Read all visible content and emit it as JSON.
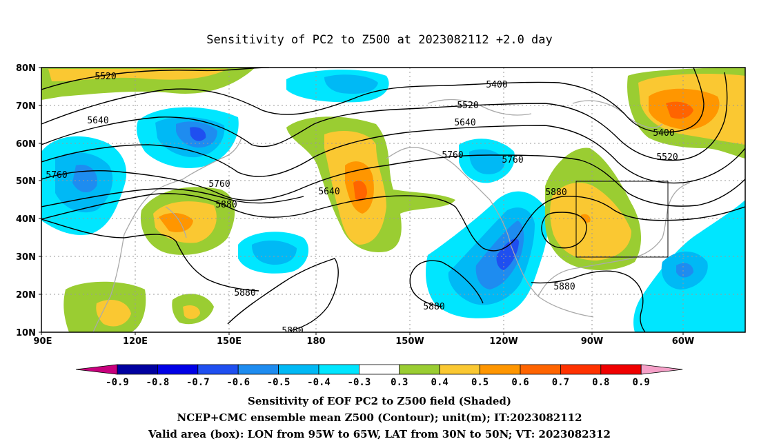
{
  "title": "Sensitivity of PC2 to Z500 at 2023082112 +2.0 day",
  "axes": {
    "lat_labels": [
      "80N",
      "70N",
      "60N",
      "50N",
      "40N",
      "30N",
      "20N",
      "10N"
    ],
    "lon_labels": [
      "90E",
      "120E",
      "150E",
      "180",
      "150W",
      "120W",
      "90W",
      "60W"
    ]
  },
  "contour_labels": [
    "5520",
    "5400",
    "5520",
    "5640",
    "5640",
    "5400",
    "5520",
    "5760",
    "5760",
    "5760",
    "5760",
    "5880",
    "5640",
    "5880",
    "5880",
    "5880",
    "5880",
    "5880"
  ],
  "colorbar": {
    "labels": [
      "-0.9",
      "-0.8",
      "-0.7",
      "-0.6",
      "-0.5",
      "-0.4",
      "-0.3",
      "0.3",
      "0.4",
      "0.5",
      "0.6",
      "0.7",
      "0.8",
      "0.9"
    ],
    "colors": [
      "#c8007d",
      "#0000a0",
      "#0000e6",
      "#1f4ff0",
      "#1e8cf0",
      "#00b9f5",
      "#00e6ff",
      "#ffffff",
      "#9acd32",
      "#fac832",
      "#ff9600",
      "#ff6400",
      "#ff3200",
      "#f00000",
      "#f5a0c8"
    ]
  },
  "valid_box": {
    "lon_min": "95W",
    "lon_max": "65W",
    "lat_min": "30N",
    "lat_max": "50N"
  },
  "captions": [
    "Sensitivity of EOF PC2 to Z500 field (Shaded)",
    "NCEP+CMC ensemble mean Z500 (Contour); unit(m); IT:2023082112",
    "Valid area (box): LON from 95W to 65W, LAT from 30N to 50N; VT: 2023082312"
  ]
}
